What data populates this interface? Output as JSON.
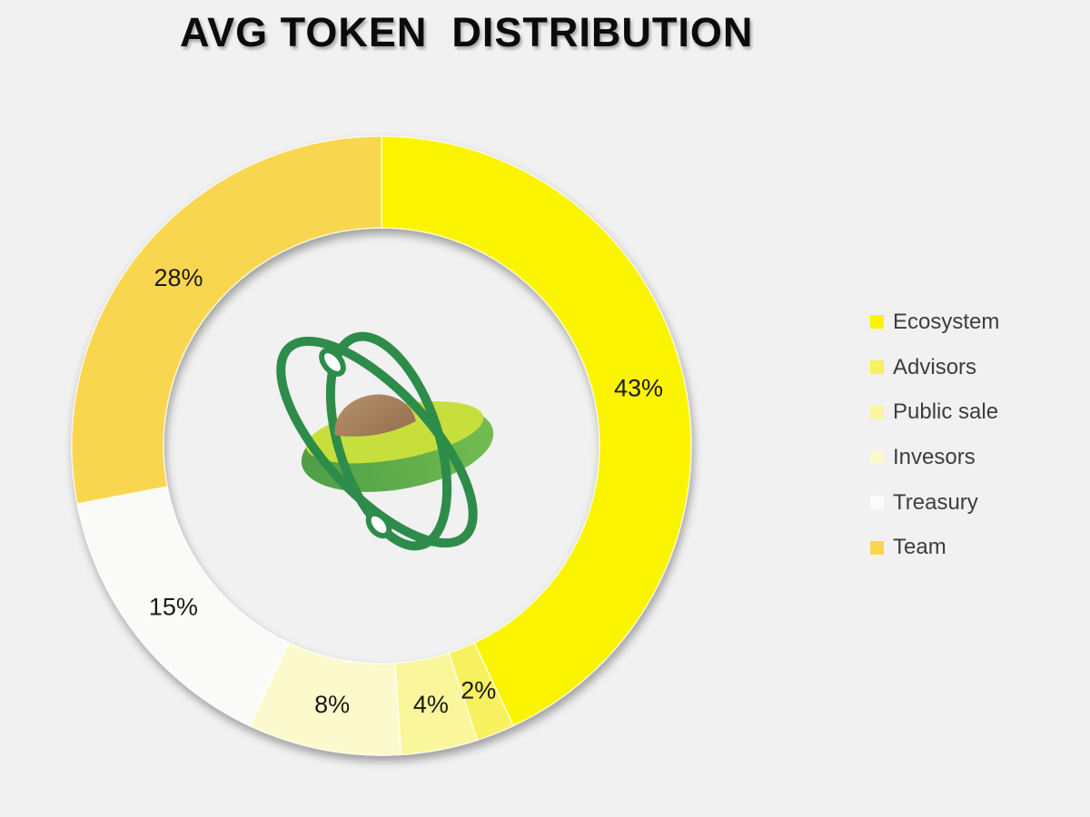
{
  "page": {
    "background_color": "#F1F1F1"
  },
  "title": {
    "text": "AVG TOKEN  DISTRIBUTION",
    "color": "#0B0B0B"
  },
  "chart_data": {
    "type": "pie",
    "variant": "donut",
    "title": "AVG TOKEN DISTRIBUTION",
    "start_angle_deg": 0,
    "direction": "clockwise",
    "categories": [
      "Ecosystem",
      "Advisors",
      "Public sale",
      "Invesors",
      "Treasury",
      "Team"
    ],
    "values": [
      43,
      2,
      4,
      8,
      15,
      28
    ],
    "unit": "%",
    "data_labels": [
      "43%",
      "2%",
      "4%",
      "8%",
      "15%",
      "28%"
    ],
    "colors": [
      "#FAF400",
      "#F7F15E",
      "#F9F69B",
      "#FCFACD",
      "#FAFAF8",
      "#F9D64F"
    ],
    "label_color": "#1A1A1A",
    "legend_position": "right",
    "grid": false
  },
  "legend": {
    "text_color": "#3D3D3D",
    "items": [
      {
        "label": "Ecosystem",
        "color": "#FAF400"
      },
      {
        "label": "Advisors",
        "color": "#F7F15E"
      },
      {
        "label": "Public sale",
        "color": "#F9F69B"
      },
      {
        "label": "Invesors",
        "color": "#FCFACD"
      },
      {
        "label": "Treasury",
        "color": "#FAFAF8"
      },
      {
        "label": "Team",
        "color": "#F9D64F"
      }
    ]
  },
  "logo": {
    "name": "avocado-orbit-logo",
    "ring_color": "#2E8C4B",
    "body_color_left": "#4E9E46",
    "body_color_right": "#73BC50",
    "flesh_color": "#C6DF3C",
    "pit_color_light": "#B5906C",
    "pit_color_dark": "#96704E",
    "node_fill": "#FFFFFF"
  }
}
